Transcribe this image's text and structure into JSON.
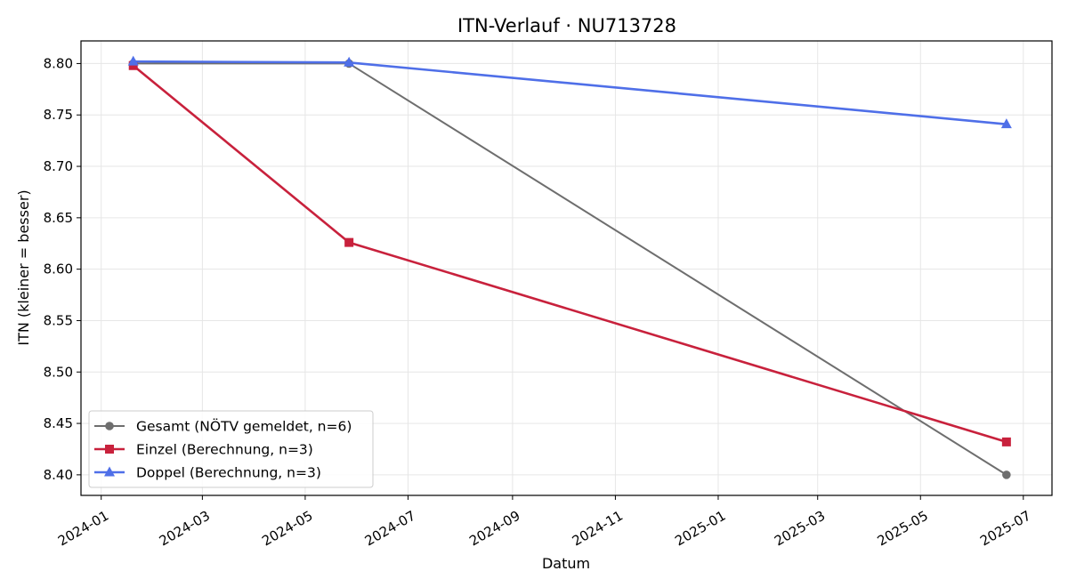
{
  "chart_data": {
    "type": "line",
    "title": "ITN-Verlauf · NU713728",
    "xlabel": "Datum",
    "ylabel": "ITN  (kleiner = besser)",
    "x_axis_type": "date",
    "xlim": [
      "2023-12-20",
      "2025-07-18"
    ],
    "ylim": [
      8.38,
      8.822
    ],
    "grid": true,
    "legend_position": "lower-left",
    "x_ticks": [
      "2024-01",
      "2024-03",
      "2024-05",
      "2024-07",
      "2024-09",
      "2024-11",
      "2025-01",
      "2025-03",
      "2025-05",
      "2025-07"
    ],
    "y_ticks": [
      "8.40",
      "8.45",
      "8.50",
      "8.55",
      "8.60",
      "8.65",
      "8.70",
      "8.75",
      "8.80"
    ],
    "series": [
      {
        "name": "Gesamt (NÖTV gemeldet, n=6)",
        "color": "#6e6e6e",
        "marker": "circle",
        "points": [
          {
            "x": "2024-01-20",
            "y": 8.8
          },
          {
            "x": "2024-05-27",
            "y": 8.8
          },
          {
            "x": "2025-06-21",
            "y": 8.4
          }
        ]
      },
      {
        "name": "Einzel (Berechnung, n=3)",
        "color": "#c8213c",
        "marker": "square",
        "points": [
          {
            "x": "2024-01-20",
            "y": 8.798
          },
          {
            "x": "2024-05-27",
            "y": 8.626
          },
          {
            "x": "2025-06-21",
            "y": 8.432
          }
        ]
      },
      {
        "name": "Doppel (Berechnung, n=3)",
        "color": "#4f6fe8",
        "marker": "triangle",
        "points": [
          {
            "x": "2024-01-20",
            "y": 8.802
          },
          {
            "x": "2024-05-27",
            "y": 8.801
          },
          {
            "x": "2025-06-21",
            "y": 8.741
          }
        ]
      }
    ]
  }
}
